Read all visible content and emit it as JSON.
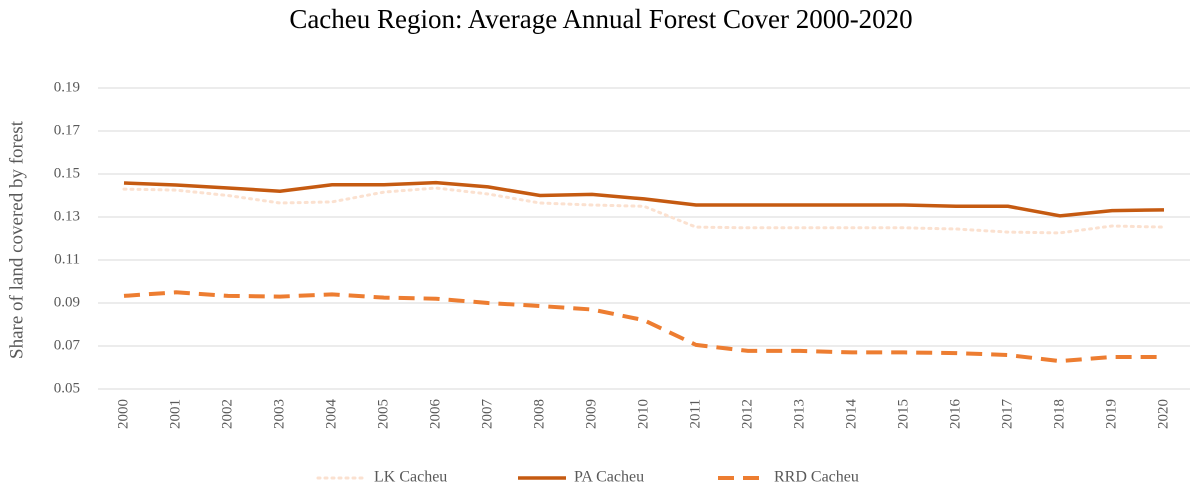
{
  "chart_data": {
    "type": "line",
    "title": "Cacheu Region: Average Annual Forest Cover 2000-2020",
    "y_label": "Share of land covered by forest",
    "categories": [
      "2000",
      "2001",
      "2002",
      "2003",
      "2004",
      "2005",
      "2006",
      "2007",
      "2008",
      "2009",
      "2010",
      "2011",
      "2012",
      "2013",
      "2014",
      "2015",
      "2016",
      "2017",
      "2018",
      "2019",
      "2020"
    ],
    "series": [
      {
        "name": "LK Cacheu",
        "color": "#fbe1d0",
        "dash": "dot",
        "values": [
          0.143,
          0.1425,
          0.14,
          0.1365,
          0.137,
          0.1416,
          0.1435,
          0.1407,
          0.1365,
          0.1356,
          0.135,
          0.1253,
          0.125,
          0.125,
          0.125,
          0.125,
          0.1244,
          0.123,
          0.1226,
          0.1258,
          0.1253
        ]
      },
      {
        "name": "PA Cacheu",
        "color": "#c55a11",
        "dash": "solid",
        "values": [
          0.1458,
          0.1449,
          0.1435,
          0.142,
          0.145,
          0.145,
          0.146,
          0.144,
          0.14,
          0.1405,
          0.1384,
          0.1356,
          0.1356,
          0.1356,
          0.1356,
          0.1356,
          0.135,
          0.135,
          0.1305,
          0.133,
          0.1333
        ]
      },
      {
        "name": "RRD Cacheu",
        "color": "#ed7d31",
        "dash": "dash",
        "values": [
          0.0933,
          0.095,
          0.0933,
          0.093,
          0.094,
          0.0925,
          0.092,
          0.09,
          0.0886,
          0.087,
          0.082,
          0.0705,
          0.0677,
          0.0677,
          0.067,
          0.067,
          0.0667,
          0.0658,
          0.063,
          0.0649,
          0.0649
        ]
      }
    ],
    "ylim": [
      0.05,
      0.19
    ],
    "yticks": [
      0.05,
      0.07,
      0.09,
      0.11,
      0.13,
      0.15,
      0.17,
      0.19
    ],
    "grid": true,
    "legend": "bottom"
  }
}
